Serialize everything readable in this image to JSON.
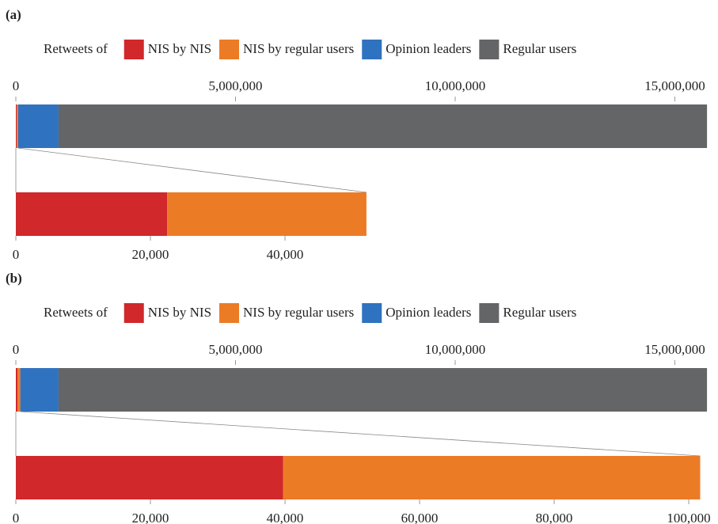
{
  "chart_data": [
    {
      "type": "bar",
      "panel_label": "(a)",
      "legend_title": "Retweets of",
      "series": [
        {
          "name": "NIS by NIS",
          "color": "#d0282b",
          "values": [
            22500
          ]
        },
        {
          "name": "NIS by regular users",
          "color": "#ec7b26",
          "values": [
            29600
          ]
        },
        {
          "name": "Opinion leaders",
          "color": "#2f72c0",
          "values": [
            920000
          ]
        },
        {
          "name": "Regular users",
          "color": "#646567",
          "values": [
            14760000
          ]
        }
      ],
      "xlim": [
        0,
        15730000
      ],
      "xticks": [
        0,
        {
          "value": 5000000,
          "label": "5,000,000"
        },
        {
          "value": 10000000,
          "label": "10,000,000"
        },
        {
          "value": 15000000,
          "label": "15,000,000"
        }
      ],
      "zoom_xlim": [
        0,
        102700
      ],
      "zoom_xticks": [
        0,
        {
          "value": 20000,
          "label": "20,000"
        },
        {
          "value": 40000,
          "label": "40,000"
        }
      ]
    },
    {
      "type": "bar",
      "panel_label": "(b)",
      "legend_title": "Retweets of",
      "series": [
        {
          "name": "NIS by NIS",
          "color": "#d0282b",
          "values": [
            39700
          ]
        },
        {
          "name": "NIS by regular users",
          "color": "#ec7b26",
          "values": [
            62000
          ]
        },
        {
          "name": "Opinion leaders",
          "color": "#2f72c0",
          "values": [
            870000
          ]
        },
        {
          "name": "Regular users",
          "color": "#646567",
          "values": [
            14760000
          ]
        }
      ],
      "xlim": [
        0,
        15730000
      ],
      "xticks": [
        0,
        {
          "value": 5000000,
          "label": "5,000,000"
        },
        {
          "value": 10000000,
          "label": "10,000,000"
        },
        {
          "value": 15000000,
          "label": "15,000,000"
        }
      ],
      "zoom_xlim": [
        0,
        102700
      ],
      "zoom_xticks": [
        0,
        {
          "value": 20000,
          "label": "20,000"
        },
        {
          "value": 40000,
          "label": "40,000"
        },
        {
          "value": 60000,
          "label": "60,000"
        },
        {
          "value": 80000,
          "label": "80,000"
        },
        {
          "value": 100000,
          "label": "100,000"
        }
      ]
    }
  ]
}
